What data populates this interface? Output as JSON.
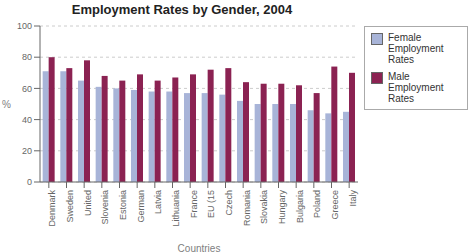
{
  "chart_data": {
    "type": "bar",
    "title": "Employment Rates by Gender, 2004",
    "xlabel": "Countries",
    "ylabel": "%",
    "categories": [
      "Denmark",
      "Sweden",
      "United",
      "Slovenia",
      "Estonia",
      "German",
      "Latvia",
      "Lithuania",
      "France",
      "EU (15",
      "Czech",
      "Romania",
      "Slovakia",
      "Hungary",
      "Bulgaria",
      "Poland",
      "Greece",
      "Italy"
    ],
    "series": [
      {
        "name": "Female Employment\nRates",
        "color": "#a8b4d8",
        "values": [
          71,
          71,
          65,
          61,
          60,
          59,
          58,
          58,
          57,
          57,
          56,
          52,
          50,
          50,
          50,
          46,
          44,
          45
        ]
      },
      {
        "name": "Male Employment Rates",
        "color": "#8b2252",
        "values": [
          80,
          73,
          78,
          68,
          65,
          69,
          65,
          67,
          69,
          72,
          73,
          64,
          63,
          63,
          62,
          57,
          74,
          70
        ]
      }
    ],
    "ylim": [
      0,
      100
    ],
    "yticks": [
      0,
      20,
      40,
      60,
      80,
      100
    ],
    "grid": true,
    "legend": "right"
  }
}
